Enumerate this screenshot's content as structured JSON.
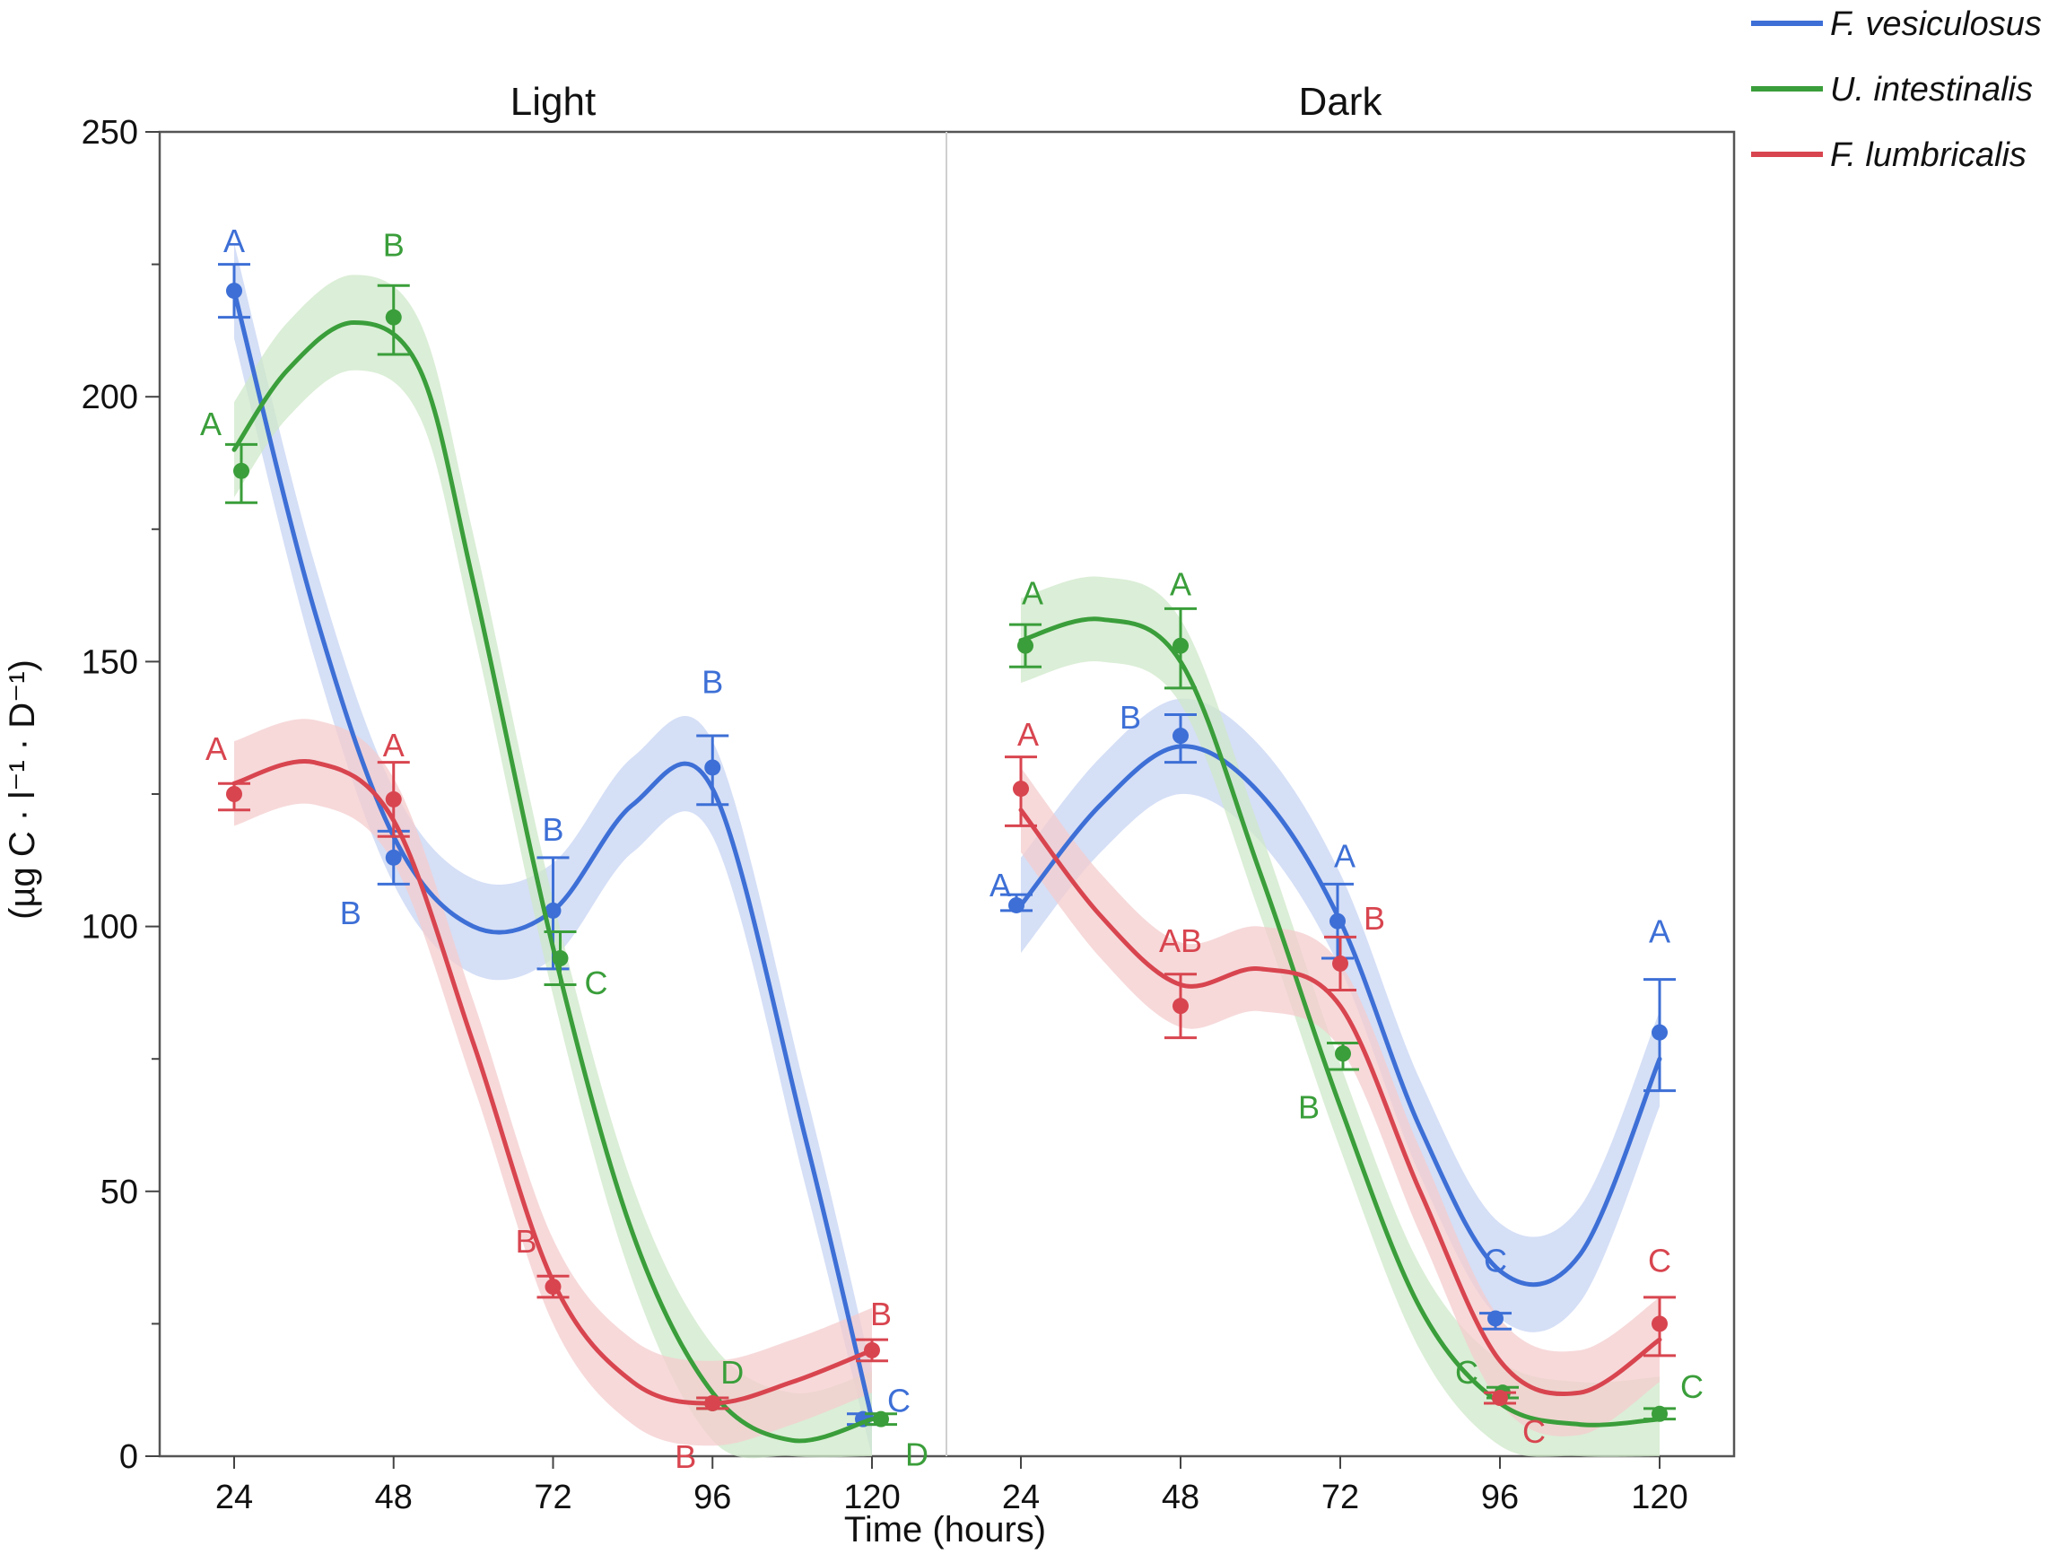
{
  "chart_data": {
    "type": "line",
    "xlabel": "Time (hours)",
    "ylabel": "(µg C · l⁻¹ · D⁻¹)",
    "x": [
      24,
      48,
      72,
      96,
      120
    ],
    "ylim": [
      0,
      250
    ],
    "yticks": [
      0,
      50,
      100,
      150,
      200,
      250
    ],
    "legend_position": "top-right",
    "series_meta": [
      {
        "name": "F. vesiculosus",
        "color": "#3d6fd6",
        "band": "#c7d4f3"
      },
      {
        "name": "U. intestinalis",
        "color": "#3a9e3a",
        "band": "#cfe8c9"
      },
      {
        "name": "F. lumbricalis",
        "color": "#d8454f",
        "band": "#f4cccd"
      }
    ],
    "panels": [
      {
        "title": "Light",
        "series": [
          {
            "name": "F. vesiculosus",
            "values": [
              220,
              113,
              103,
              130,
              7
            ],
            "err_low": [
              215,
              108,
              92,
              123,
              6
            ],
            "err_high": [
              225,
              118,
              113,
              136,
              8
            ],
            "letters": [
              "A",
              "B",
              "B",
              "B",
              "C"
            ],
            "smooth": [
              [
                24,
                220
              ],
              [
                36,
                160
              ],
              [
                48,
                117
              ],
              [
                60,
                100
              ],
              [
                72,
                103
              ],
              [
                84,
                123
              ],
              [
                96,
                126
              ],
              [
                110,
                60
              ],
              [
                120,
                7
              ]
            ],
            "band_width": 9
          },
          {
            "name": "U. intestinalis",
            "values": [
              186,
              215,
              94,
              10,
              7
            ],
            "err_low": [
              180,
              208,
              89,
              9,
              6
            ],
            "err_high": [
              191,
              221,
              99,
              11,
              8
            ],
            "letters": [
              "A",
              "B",
              "C",
              "D",
              "D"
            ],
            "smooth": [
              [
                24,
                190
              ],
              [
                32,
                205
              ],
              [
                42,
                214
              ],
              [
                52,
                205
              ],
              [
                60,
                165
              ],
              [
                72,
                96
              ],
              [
                84,
                42
              ],
              [
                96,
                12
              ],
              [
                108,
                3
              ],
              [
                120,
                7
              ]
            ],
            "band_width": 9
          },
          {
            "name": "F. lumbricalis",
            "values": [
              125,
              124,
              32,
              10,
              20
            ],
            "err_low": [
              122,
              117,
              30,
              9,
              18
            ],
            "err_high": [
              127,
              131,
              34,
              11,
              22
            ],
            "letters": [
              "A",
              "A",
              "B",
              "B",
              "B"
            ],
            "smooth": [
              [
                24,
                127
              ],
              [
                36,
                131
              ],
              [
                48,
                120
              ],
              [
                60,
                78
              ],
              [
                72,
                33
              ],
              [
                84,
                14
              ],
              [
                96,
                10
              ],
              [
                108,
                14
              ],
              [
                120,
                20
              ]
            ],
            "band_width": 8
          }
        ]
      },
      {
        "title": "Dark",
        "series": [
          {
            "name": "F. vesiculosus",
            "values": [
              104,
              136,
              101,
              26,
              80
            ],
            "err_low": [
              103,
              131,
              94,
              24,
              69
            ],
            "err_high": [
              106,
              140,
              108,
              27,
              90
            ],
            "letters": [
              "A",
              "B",
              "A",
              "C",
              "A"
            ],
            "smooth": [
              [
                24,
                104
              ],
              [
                36,
                123
              ],
              [
                48,
                134
              ],
              [
                60,
                125
              ],
              [
                72,
                101
              ],
              [
                84,
                62
              ],
              [
                96,
                35
              ],
              [
                108,
                38
              ],
              [
                120,
                75
              ]
            ],
            "band_width": 9
          },
          {
            "name": "U. intestinalis",
            "values": [
              153,
              153,
              76,
              12,
              8
            ],
            "err_low": [
              149,
              145,
              73,
              11,
              7
            ],
            "err_high": [
              157,
              160,
              78,
              13,
              9
            ],
            "letters": [
              "A",
              "A",
              "B",
              "C",
              "C"
            ],
            "smooth": [
              [
                24,
                154
              ],
              [
                36,
                158
              ],
              [
                48,
                150
              ],
              [
                60,
                110
              ],
              [
                72,
                66
              ],
              [
                84,
                28
              ],
              [
                96,
                10
              ],
              [
                108,
                6
              ],
              [
                120,
                7
              ]
            ],
            "band_width": 8
          },
          {
            "name": "F. lumbricalis",
            "values": [
              126,
              85,
              93,
              11,
              25
            ],
            "err_low": [
              119,
              79,
              88,
              10,
              19
            ],
            "err_high": [
              132,
              91,
              98,
              12,
              30
            ],
            "letters": [
              "A",
              "AB",
              "B",
              "C",
              "C"
            ],
            "smooth": [
              [
                24,
                122
              ],
              [
                36,
                102
              ],
              [
                48,
                89
              ],
              [
                60,
                92
              ],
              [
                72,
                85
              ],
              [
                84,
                50
              ],
              [
                96,
                18
              ],
              [
                108,
                12
              ],
              [
                120,
                22
              ]
            ],
            "band_width": 8
          }
        ]
      }
    ]
  }
}
